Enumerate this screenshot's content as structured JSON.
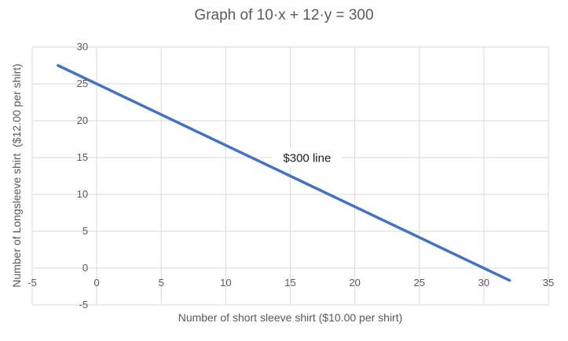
{
  "chart_data": {
    "type": "line",
    "title": "Graph of 10·x + 12·y = 300",
    "xlabel": "Number of short sleeve shirt ($10.00 per shirt)",
    "ylabel": "Number of Longsleeve shirt  ($12.00 per shirt)",
    "xlim": [
      -5,
      35
    ],
    "ylim": [
      -5,
      30
    ],
    "xticks": [
      -5,
      0,
      5,
      10,
      15,
      20,
      25,
      30,
      35
    ],
    "yticks": [
      -5,
      0,
      5,
      10,
      15,
      20,
      25,
      30
    ],
    "grid": true,
    "legend_position": "none",
    "series": [
      {
        "name": "$300 line",
        "color": "#4472C4",
        "stroke_width": 3.5,
        "points": [
          [
            -3,
            27.5
          ],
          [
            32,
            -1.67
          ]
        ]
      }
    ],
    "annotation": {
      "text": "$300 line",
      "x": 16.3,
      "y": 15
    }
  },
  "colors": {
    "background": "#FFFFFF",
    "gridline": "#D9D9D9",
    "tick_text": "#595959",
    "title_text": "#595959",
    "series_line": "#4472C4",
    "annotation_text": "#1A1A1A"
  }
}
